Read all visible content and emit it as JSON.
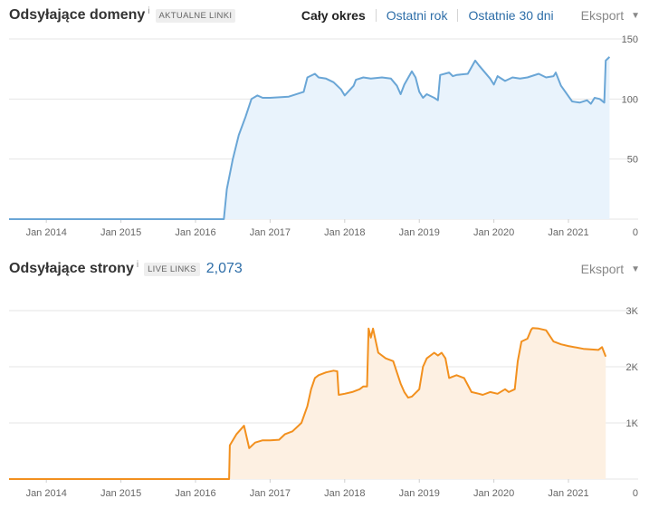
{
  "range_selector": {
    "all_time": "Cały okres",
    "last_year": "Ostatni rok",
    "last_30_days": "Ostatnie 30 dni"
  },
  "export_label": "Eksport",
  "info_marker": "i",
  "colors": {
    "domains_line": "#6aa6d6",
    "domains_fill": "#e9f3fc",
    "pages_line": "#f2901e",
    "pages_fill": "#fdf0e2",
    "grid": "#e6e6e6"
  },
  "chart_data": [
    {
      "type": "area",
      "title": "Odsyłające domeny",
      "badge": "AKTUALNE LINKI",
      "metric": "",
      "x_ticks": [
        "Jan 2014",
        "Jan 2015",
        "Jan 2016",
        "Jan 2017",
        "Jan 2018",
        "Jan 2019",
        "Jan 2020",
        "Jan 2021"
      ],
      "y_ticks": [
        "150",
        "100",
        "50",
        "0"
      ],
      "y_tick_values": [
        150,
        100,
        50,
        0
      ],
      "xlim": [
        2013.5,
        2021.57
      ],
      "ylim": [
        0,
        150
      ],
      "grid": true,
      "series": [
        {
          "x": [
            2013.5,
            2016.38,
            2016.42,
            2016.5,
            2016.58,
            2016.67,
            2016.75,
            2016.83,
            2016.9,
            2017.0,
            2017.25,
            2017.45,
            2017.5,
            2017.6,
            2017.65,
            2017.75,
            2017.85,
            2017.95,
            2018.0,
            2018.12,
            2018.15,
            2018.25,
            2018.35,
            2018.5,
            2018.62,
            2018.7,
            2018.75,
            2018.8,
            2018.9,
            2018.95,
            2019.0,
            2019.05,
            2019.1,
            2019.2,
            2019.25,
            2019.28,
            2019.4,
            2019.45,
            2019.5,
            2019.65,
            2019.75,
            2019.8,
            2019.95,
            2020.0,
            2020.05,
            2020.15,
            2020.25,
            2020.35,
            2020.45,
            2020.6,
            2020.7,
            2020.8,
            2020.83,
            2020.9,
            2021.05,
            2021.15,
            2021.25,
            2021.3,
            2021.35,
            2021.42,
            2021.48,
            2021.5,
            2021.55
          ],
          "values": [
            0,
            0,
            25,
            50,
            70,
            85,
            100,
            103,
            101,
            101,
            102,
            106,
            118,
            121,
            118,
            117,
            114,
            108,
            103,
            111,
            116,
            118,
            117,
            118,
            117,
            111,
            104,
            112,
            123,
            118,
            106,
            101,
            104,
            101,
            99,
            120,
            122,
            119,
            120,
            121,
            132,
            128,
            117,
            112,
            119,
            115,
            118,
            117,
            118,
            121,
            118,
            119,
            122,
            111,
            98,
            97,
            99,
            96,
            101,
            100,
            97,
            132,
            135
          ]
        }
      ]
    },
    {
      "type": "area",
      "title": "Odsyłające strony",
      "badge": "LIVE LINKS",
      "metric": "2,073",
      "x_ticks": [
        "Jan 2014",
        "Jan 2015",
        "Jan 2016",
        "Jan 2017",
        "Jan 2018",
        "Jan 2019",
        "Jan 2020",
        "Jan 2021"
      ],
      "y_ticks": [
        "3K",
        "2K",
        "1K",
        "0"
      ],
      "y_tick_values": [
        3000,
        2000,
        1000,
        0
      ],
      "xlim": [
        2013.5,
        2021.57
      ],
      "ylim": [
        0,
        3000
      ],
      "grid": true,
      "series": [
        {
          "x": [
            2013.5,
            2016.45,
            2016.46,
            2016.55,
            2016.65,
            2016.72,
            2016.8,
            2016.9,
            2017.0,
            2017.12,
            2017.2,
            2017.3,
            2017.42,
            2017.5,
            2017.55,
            2017.6,
            2017.65,
            2017.75,
            2017.85,
            2017.9,
            2017.92,
            2018.0,
            2018.1,
            2018.2,
            2018.25,
            2018.3,
            2018.32,
            2018.35,
            2018.38,
            2018.45,
            2018.55,
            2018.65,
            2018.75,
            2018.8,
            2018.85,
            2018.9,
            2019.0,
            2019.05,
            2019.1,
            2019.2,
            2019.25,
            2019.3,
            2019.35,
            2019.4,
            2019.5,
            2019.6,
            2019.7,
            2019.8,
            2019.85,
            2019.95,
            2020.05,
            2020.15,
            2020.2,
            2020.28,
            2020.32,
            2020.37,
            2020.45,
            2020.5,
            2020.52,
            2020.6,
            2020.7,
            2020.8,
            2020.9,
            2021.0,
            2021.2,
            2021.4,
            2021.45,
            2021.5
          ],
          "values": [
            0,
            0,
            600,
            800,
            950,
            550,
            650,
            690,
            690,
            700,
            800,
            850,
            1000,
            1300,
            1600,
            1800,
            1850,
            1900,
            1930,
            1920,
            1500,
            1520,
            1550,
            1600,
            1650,
            1650,
            2680,
            2520,
            2680,
            2250,
            2150,
            2100,
            1700,
            1550,
            1450,
            1470,
            1600,
            2000,
            2150,
            2250,
            2200,
            2250,
            2150,
            1800,
            1850,
            1800,
            1550,
            1520,
            1500,
            1550,
            1520,
            1600,
            1550,
            1600,
            2100,
            2450,
            2500,
            2660,
            2690,
            2680,
            2650,
            2450,
            2400,
            2370,
            2320,
            2300,
            2350,
            2180
          ]
        }
      ]
    }
  ]
}
